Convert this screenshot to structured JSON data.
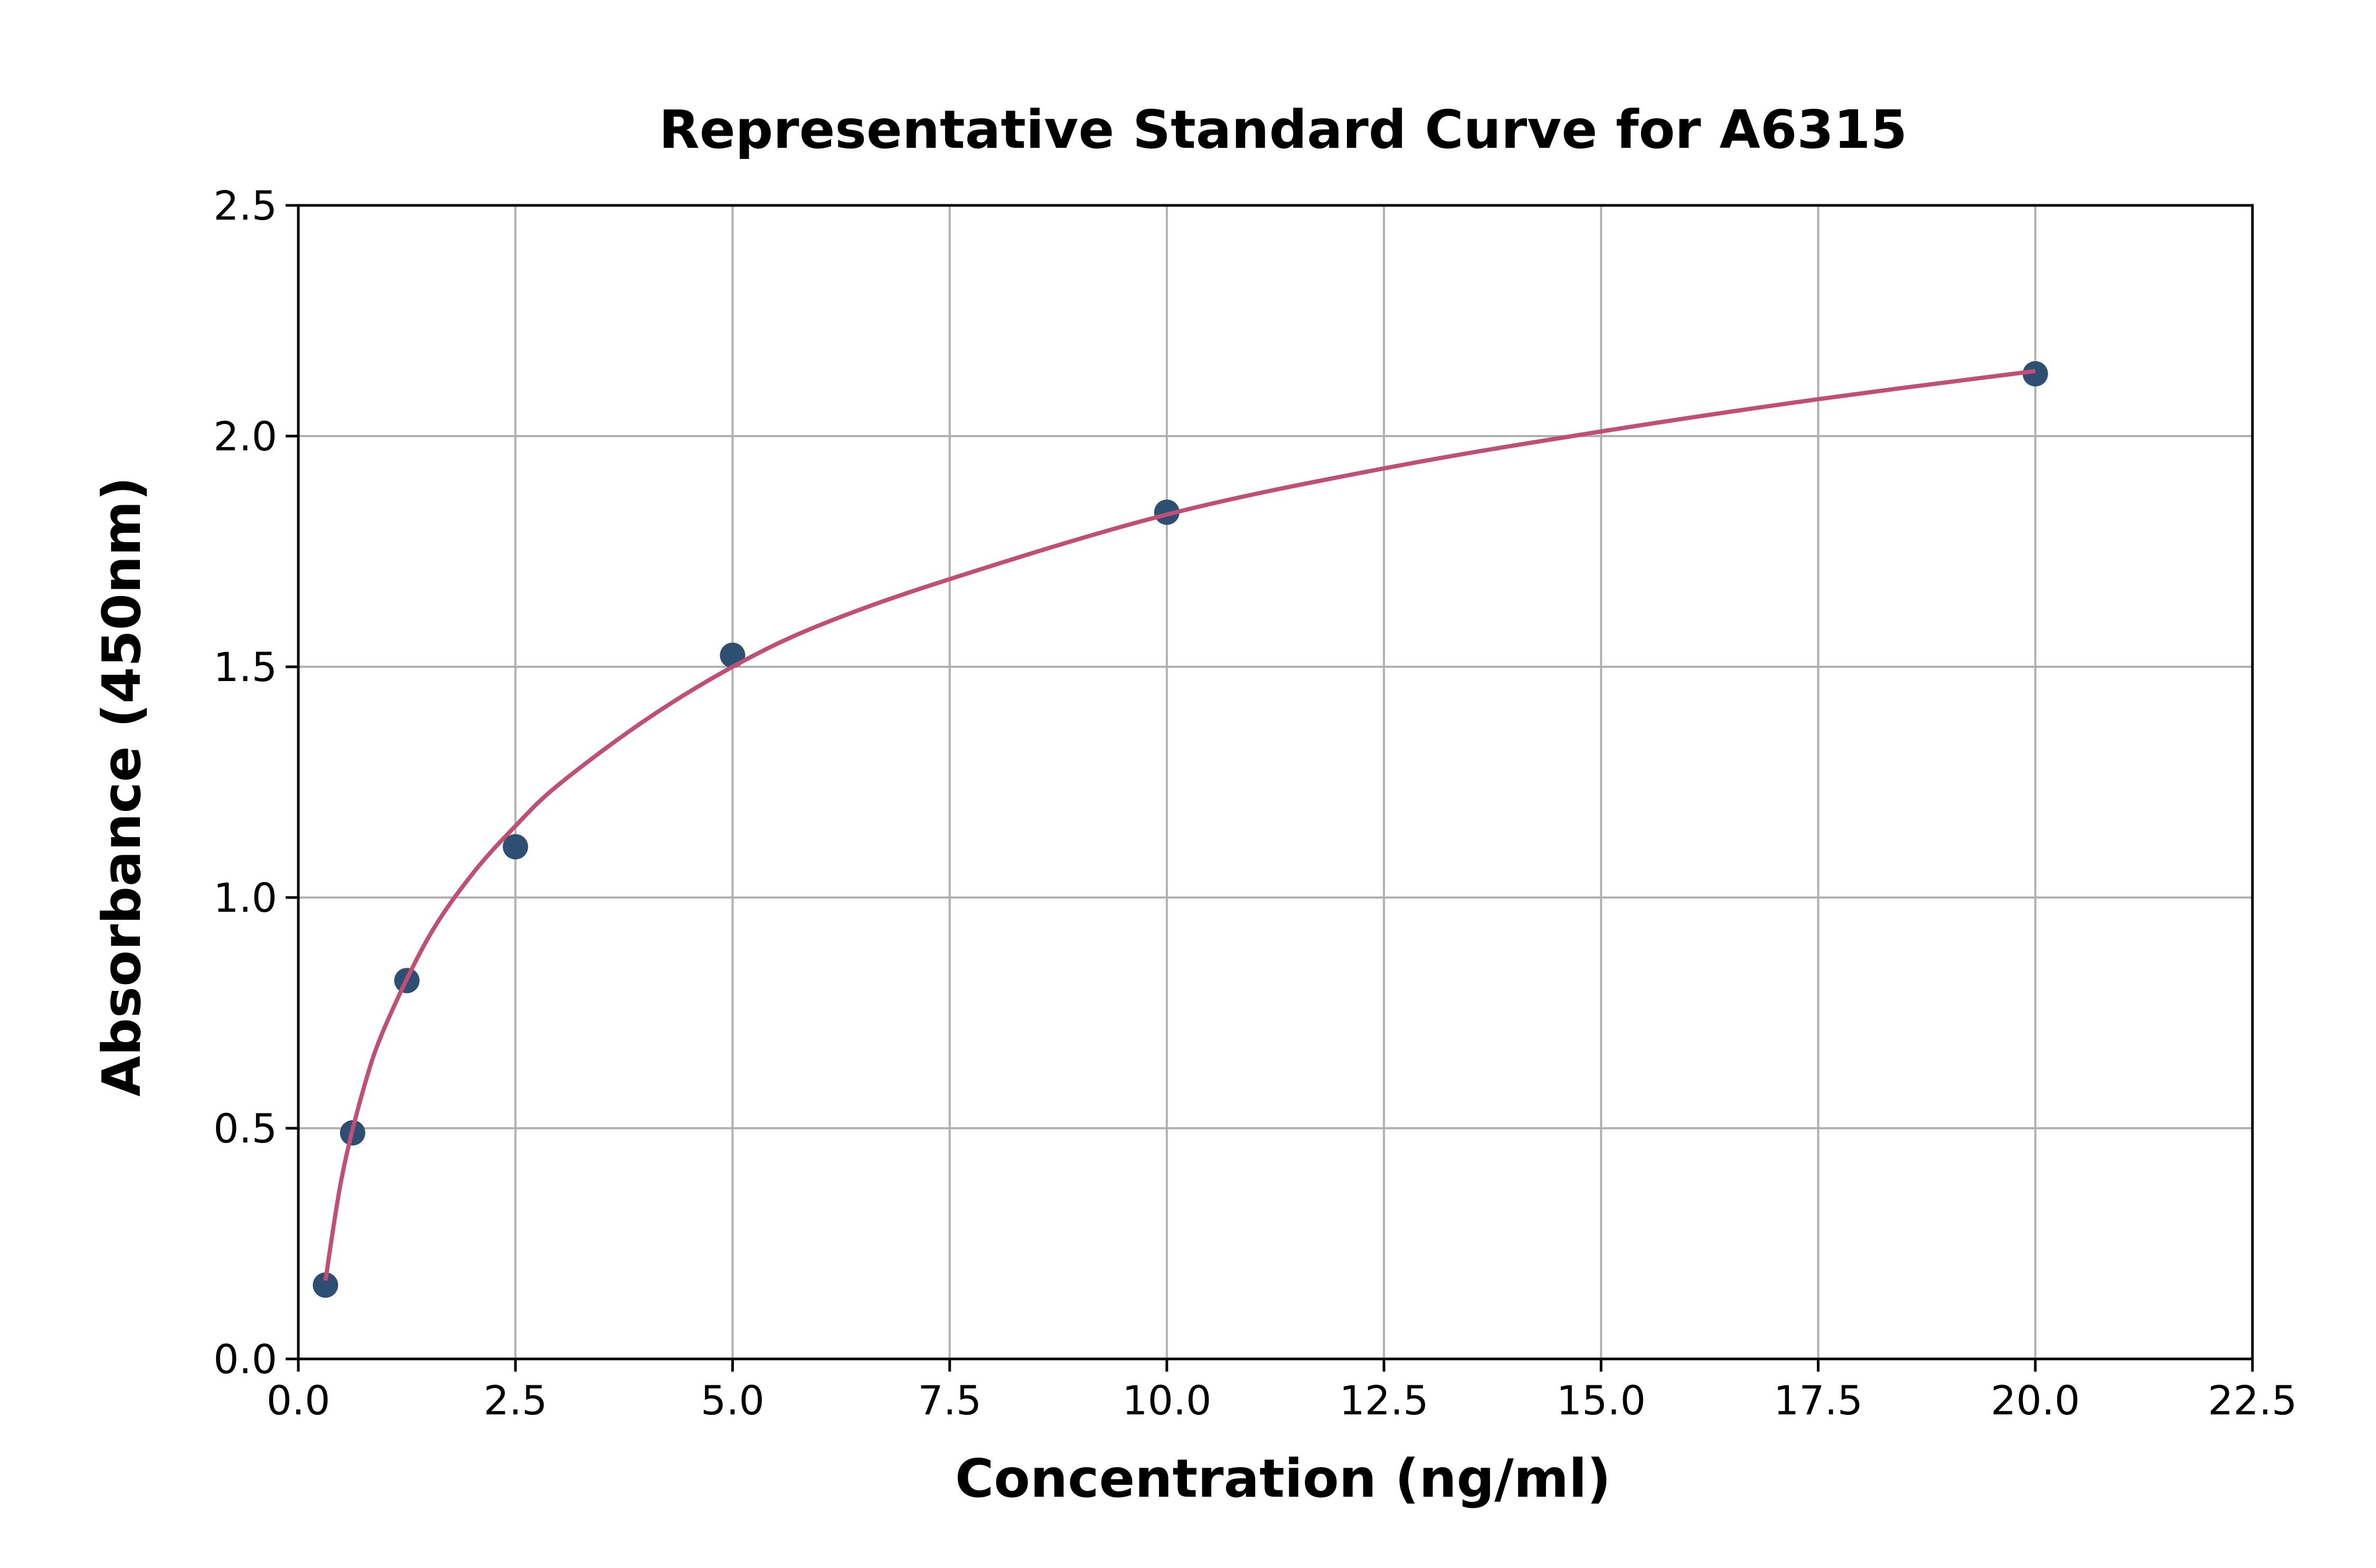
{
  "chart_data": {
    "type": "scatter",
    "title": "Representative Standard Curve for A6315",
    "xlabel": "Concentration (ng/ml)",
    "ylabel": "Absorbance (450nm)",
    "xlim": [
      0,
      22.5
    ],
    "ylim": [
      0,
      2.5
    ],
    "xticks": [
      "0.0",
      "2.5",
      "5.0",
      "7.5",
      "10.0",
      "12.5",
      "15.0",
      "17.5",
      "20.0",
      "22.5"
    ],
    "yticks": [
      "0.0",
      "0.5",
      "1.0",
      "1.5",
      "2.0",
      "2.5"
    ],
    "grid": true,
    "points": {
      "x": [
        0.3125,
        0.625,
        1.25,
        2.5,
        5,
        10,
        20
      ],
      "y": [
        0.16,
        0.49,
        0.82,
        1.11,
        1.525,
        1.835,
        2.135
      ]
    },
    "fit_curve": {
      "x": [
        0.3125,
        0.5,
        0.75,
        1,
        1.5,
        2,
        2.5,
        3,
        4,
        5,
        6,
        7.5,
        10,
        12.5,
        15,
        17.5,
        20
      ],
      "y": [
        0.17,
        0.393,
        0.585,
        0.721,
        0.914,
        1.05,
        1.155,
        1.245,
        1.385,
        1.5,
        1.59,
        1.69,
        1.83,
        1.93,
        2.01,
        2.08,
        2.141
      ]
    },
    "colors": {
      "points": "#2e4e72",
      "curve": "#bf4f75",
      "grid": "#b0b0b0"
    }
  }
}
